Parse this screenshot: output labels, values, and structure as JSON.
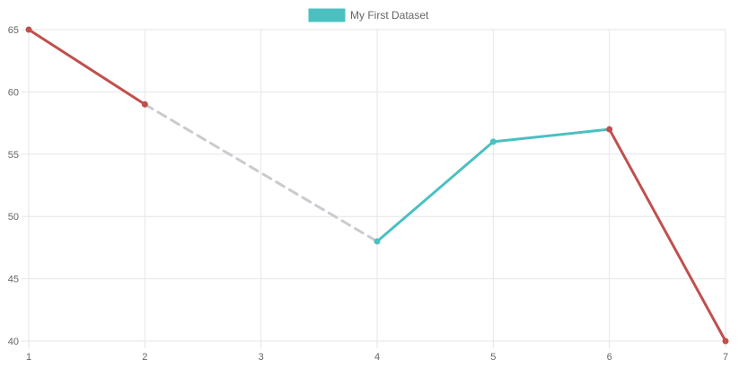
{
  "chart_data": {
    "type": "line",
    "x": [
      1,
      2,
      3,
      4,
      5,
      6,
      7
    ],
    "xlim": [
      1,
      7
    ],
    "ylim": [
      40,
      65
    ],
    "x_ticks": [
      1,
      2,
      3,
      4,
      5,
      6,
      7
    ],
    "y_ticks": [
      40,
      45,
      50,
      55,
      60,
      65
    ],
    "grid": true,
    "legend_position": "top",
    "legend_label": "My First Dataset",
    "series": [
      {
        "name": "My First Dataset",
        "values": [
          65,
          59,
          null,
          48,
          56,
          57,
          40
        ],
        "color": "#4bc0c0",
        "decreasing_segment_color": "#c0504d",
        "gap_color": "#c9cbcf"
      }
    ]
  }
}
